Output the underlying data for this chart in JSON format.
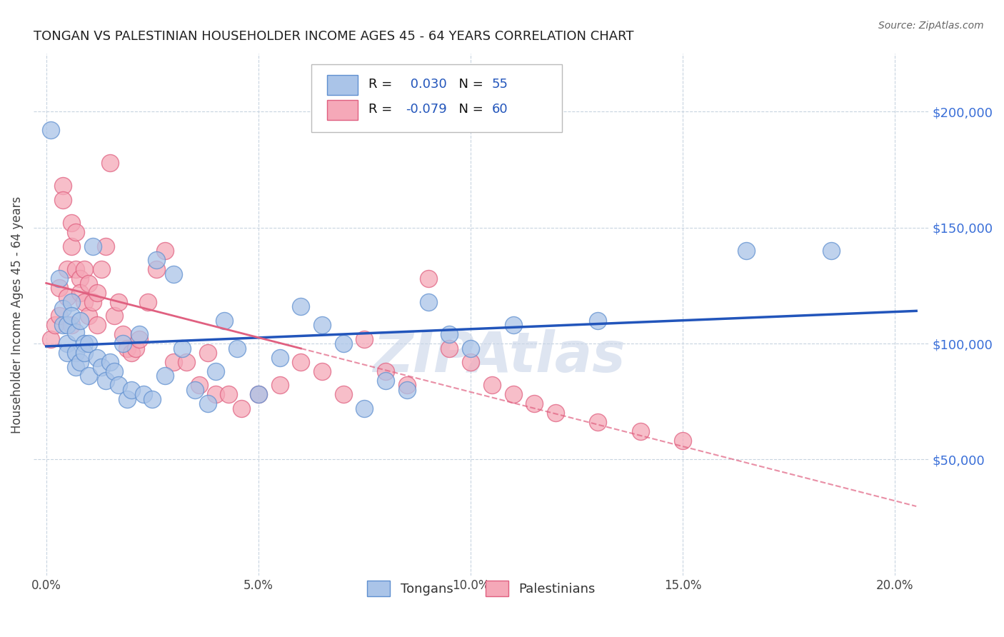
{
  "title": "TONGAN VS PALESTINIAN HOUSEHOLDER INCOME AGES 45 - 64 YEARS CORRELATION CHART",
  "source": "Source: ZipAtlas.com",
  "ylabel": "Householder Income Ages 45 - 64 years",
  "xlabel_ticks": [
    "0.0%",
    "5.0%",
    "10.0%",
    "15.0%",
    "20.0%"
  ],
  "xlabel_vals": [
    0.0,
    0.05,
    0.1,
    0.15,
    0.2
  ],
  "ytick_labels": [
    "$50,000",
    "$100,000",
    "$150,000",
    "$200,000"
  ],
  "ytick_vals": [
    50000,
    100000,
    150000,
    200000
  ],
  "ylim": [
    0,
    225000
  ],
  "xlim": [
    -0.003,
    0.208
  ],
  "tongan_R": 0.03,
  "tongan_N": 55,
  "palestinian_R": -0.079,
  "palestinian_N": 60,
  "tongan_color": "#aac4e8",
  "palestinian_color": "#f5a8b8",
  "tongan_edge": "#6090d0",
  "palestinian_edge": "#e06080",
  "line_tongan_color": "#2255bb",
  "line_palestinian_color": "#e06080",
  "watermark_color": "#c8d4e8",
  "background_color": "#ffffff",
  "grid_color": "#c8d4e0",
  "tongan_x": [
    0.001,
    0.003,
    0.004,
    0.004,
    0.005,
    0.005,
    0.005,
    0.006,
    0.006,
    0.007,
    0.007,
    0.007,
    0.008,
    0.008,
    0.009,
    0.009,
    0.01,
    0.01,
    0.011,
    0.012,
    0.013,
    0.014,
    0.015,
    0.016,
    0.017,
    0.018,
    0.019,
    0.02,
    0.022,
    0.023,
    0.025,
    0.026,
    0.028,
    0.03,
    0.032,
    0.035,
    0.038,
    0.04,
    0.042,
    0.045,
    0.05,
    0.055,
    0.06,
    0.065,
    0.07,
    0.075,
    0.08,
    0.085,
    0.09,
    0.095,
    0.1,
    0.11,
    0.13,
    0.165,
    0.185
  ],
  "tongan_y": [
    192000,
    128000,
    115000,
    108000,
    108000,
    100000,
    96000,
    118000,
    112000,
    105000,
    96000,
    90000,
    110000,
    92000,
    100000,
    96000,
    100000,
    86000,
    142000,
    94000,
    90000,
    84000,
    92000,
    88000,
    82000,
    100000,
    76000,
    80000,
    104000,
    78000,
    76000,
    136000,
    86000,
    130000,
    98000,
    80000,
    74000,
    88000,
    110000,
    98000,
    78000,
    94000,
    116000,
    108000,
    100000,
    72000,
    84000,
    80000,
    118000,
    104000,
    98000,
    108000,
    110000,
    140000,
    140000
  ],
  "palestinian_x": [
    0.001,
    0.002,
    0.003,
    0.003,
    0.004,
    0.004,
    0.005,
    0.005,
    0.006,
    0.006,
    0.006,
    0.007,
    0.007,
    0.008,
    0.008,
    0.009,
    0.009,
    0.01,
    0.01,
    0.011,
    0.012,
    0.012,
    0.013,
    0.014,
    0.015,
    0.016,
    0.017,
    0.018,
    0.019,
    0.02,
    0.021,
    0.022,
    0.024,
    0.026,
    0.028,
    0.03,
    0.033,
    0.036,
    0.038,
    0.04,
    0.043,
    0.046,
    0.05,
    0.055,
    0.06,
    0.065,
    0.07,
    0.075,
    0.08,
    0.085,
    0.09,
    0.095,
    0.1,
    0.105,
    0.11,
    0.115,
    0.12,
    0.13,
    0.14,
    0.15
  ],
  "palestinian_y": [
    102000,
    108000,
    124000,
    112000,
    168000,
    162000,
    132000,
    120000,
    152000,
    142000,
    108000,
    148000,
    132000,
    128000,
    122000,
    132000,
    118000,
    126000,
    112000,
    118000,
    108000,
    122000,
    132000,
    142000,
    178000,
    112000,
    118000,
    104000,
    98000,
    96000,
    98000,
    102000,
    118000,
    132000,
    140000,
    92000,
    92000,
    82000,
    96000,
    78000,
    78000,
    72000,
    78000,
    82000,
    92000,
    88000,
    78000,
    102000,
    88000,
    82000,
    128000,
    98000,
    92000,
    82000,
    78000,
    74000,
    70000,
    66000,
    62000,
    58000
  ]
}
